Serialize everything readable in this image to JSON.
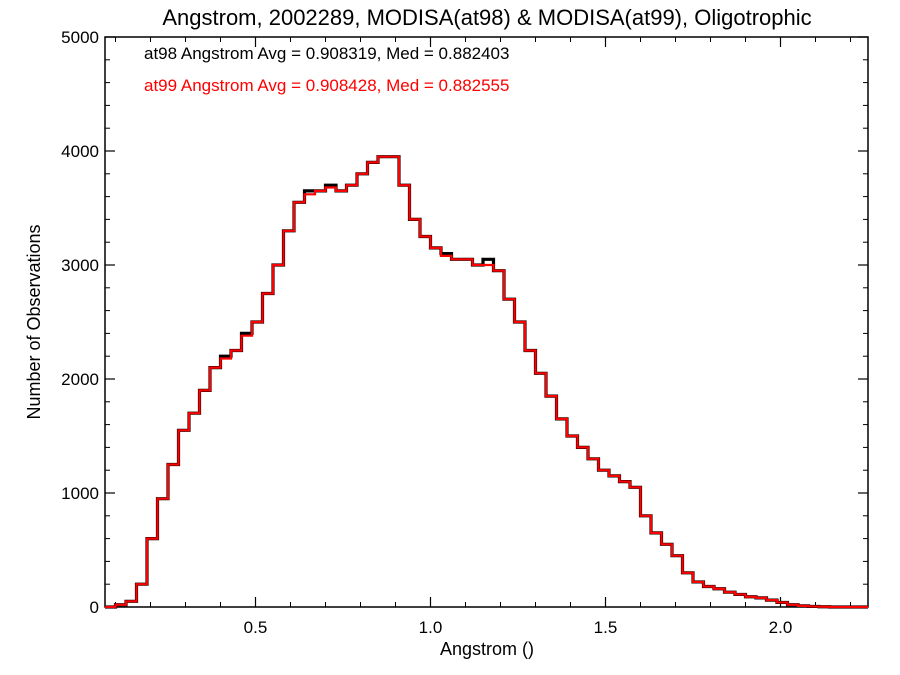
{
  "chart_data": {
    "type": "line",
    "style": "step histogram",
    "title": "Angstrom, 2002289, MODISA(at98) & MODISA(at99), Oligotrophic",
    "xlabel": "Angstrom ()",
    "ylabel": "Number of Observations",
    "xlim": [
      0.07,
      2.25
    ],
    "ylim": [
      0,
      5000
    ],
    "grid": false,
    "x_ticks": [
      0.5,
      1.0,
      1.5,
      2.0
    ],
    "x_tick_labels": [
      "0.5",
      "1.0",
      "1.5",
      "2.0"
    ],
    "y_ticks": [
      0,
      1000,
      2000,
      3000,
      4000,
      5000
    ],
    "y_tick_labels": [
      "0",
      "1000",
      "2000",
      "3000",
      "4000",
      "5000"
    ],
    "annotations": [
      {
        "text": "at98 Angstrom Avg = 0.908319, Med = 0.882403",
        "color": "#000000"
      },
      {
        "text": "at99 Angstrom Avg = 0.908428, Med = 0.882555",
        "color": "#ff0000"
      }
    ],
    "series": [
      {
        "color": "#000000",
        "x": [
          0.07,
          0.1,
          0.13,
          0.16,
          0.19,
          0.22,
          0.25,
          0.28,
          0.31,
          0.34,
          0.37,
          0.4,
          0.43,
          0.46,
          0.49,
          0.52,
          0.55,
          0.58,
          0.61,
          0.64,
          0.67,
          0.7,
          0.73,
          0.76,
          0.79,
          0.82,
          0.85,
          0.88,
          0.91,
          0.94,
          0.97,
          1.0,
          1.03,
          1.06,
          1.09,
          1.12,
          1.15,
          1.18,
          1.21,
          1.24,
          1.27,
          1.3,
          1.33,
          1.36,
          1.39,
          1.42,
          1.45,
          1.48,
          1.51,
          1.54,
          1.57,
          1.6,
          1.63,
          1.66,
          1.69,
          1.72,
          1.75,
          1.78,
          1.81,
          1.84,
          1.87,
          1.9,
          1.93,
          1.96,
          1.99,
          2.02,
          2.05,
          2.08,
          2.11,
          2.14,
          2.17,
          2.2,
          2.23
        ],
        "y": [
          0,
          20,
          50,
          200,
          600,
          950,
          1250,
          1550,
          1700,
          1900,
          2100,
          2200,
          2250,
          2400,
          2500,
          2750,
          3000,
          3300,
          3550,
          3650,
          3650,
          3700,
          3650,
          3700,
          3800,
          3900,
          3950,
          3950,
          3700,
          3400,
          3250,
          3150,
          3100,
          3050,
          3050,
          3000,
          3050,
          2950,
          2700,
          2500,
          2250,
          2050,
          1850,
          1650,
          1500,
          1400,
          1300,
          1200,
          1150,
          1100,
          1050,
          800,
          650,
          550,
          450,
          300,
          220,
          180,
          160,
          130,
          110,
          90,
          80,
          60,
          40,
          20,
          10,
          5,
          2,
          0,
          0,
          0,
          0
        ]
      },
      {
        "color": "#ff0000",
        "x": [
          0.07,
          0.1,
          0.13,
          0.16,
          0.19,
          0.22,
          0.25,
          0.28,
          0.31,
          0.34,
          0.37,
          0.4,
          0.43,
          0.46,
          0.49,
          0.52,
          0.55,
          0.58,
          0.61,
          0.64,
          0.67,
          0.7,
          0.73,
          0.76,
          0.79,
          0.82,
          0.85,
          0.88,
          0.91,
          0.94,
          0.97,
          1.0,
          1.03,
          1.06,
          1.09,
          1.12,
          1.15,
          1.18,
          1.21,
          1.24,
          1.27,
          1.3,
          1.33,
          1.36,
          1.39,
          1.42,
          1.45,
          1.48,
          1.51,
          1.54,
          1.57,
          1.6,
          1.63,
          1.66,
          1.69,
          1.72,
          1.75,
          1.78,
          1.81,
          1.84,
          1.87,
          1.9,
          1.93,
          1.96,
          1.99,
          2.02,
          2.05,
          2.08,
          2.11,
          2.14,
          2.17,
          2.2,
          2.23
        ],
        "y": [
          0,
          20,
          50,
          200,
          600,
          950,
          1250,
          1550,
          1700,
          1900,
          2100,
          2180,
          2250,
          2380,
          2500,
          2750,
          3000,
          3300,
          3550,
          3620,
          3650,
          3680,
          3650,
          3700,
          3800,
          3900,
          3950,
          3950,
          3700,
          3400,
          3250,
          3150,
          3080,
          3050,
          3050,
          3000,
          3000,
          2950,
          2700,
          2500,
          2250,
          2050,
          1850,
          1650,
          1500,
          1400,
          1300,
          1200,
          1150,
          1100,
          1050,
          800,
          650,
          550,
          450,
          300,
          220,
          180,
          160,
          130,
          110,
          90,
          80,
          60,
          40,
          20,
          10,
          5,
          2,
          0,
          0,
          0,
          0
        ]
      }
    ]
  }
}
